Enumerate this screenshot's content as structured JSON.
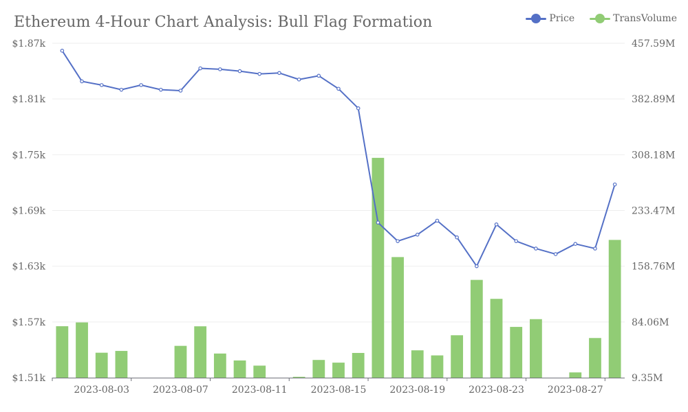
{
  "chart_data": {
    "type": "bar+line",
    "title": "Ethereum 4-Hour Chart Analysis: Bull Flag Formation",
    "x": [
      "2023-08-01",
      "2023-08-02",
      "2023-08-03",
      "2023-08-04",
      "2023-08-05",
      "2023-08-06",
      "2023-08-07",
      "2023-08-08",
      "2023-08-09",
      "2023-08-10",
      "2023-08-11",
      "2023-08-12",
      "2023-08-13",
      "2023-08-14",
      "2023-08-15",
      "2023-08-16",
      "2023-08-17",
      "2023-08-18",
      "2023-08-19",
      "2023-08-20",
      "2023-08-21",
      "2023-08-22",
      "2023-08-23",
      "2023-08-24",
      "2023-08-25",
      "2023-08-26",
      "2023-08-27",
      "2023-08-28",
      "2023-08-29"
    ],
    "x_tick_labels": [
      "2023-08-03",
      "2023-08-07",
      "2023-08-11",
      "2023-08-15",
      "2023-08-19",
      "2023-08-23",
      "2023-08-27"
    ],
    "series": [
      {
        "name": "Price",
        "type": "line",
        "axis": "left",
        "color": "#5470c6",
        "values": [
          1862,
          1829,
          1825,
          1820,
          1825,
          1820,
          1819,
          1843,
          1842,
          1840,
          1837,
          1838,
          1831,
          1835,
          1821,
          1800,
          1677,
          1657,
          1664,
          1679,
          1661,
          1630,
          1675,
          1657,
          1649,
          1643,
          1654,
          1649,
          1718
        ]
      },
      {
        "name": "TransVolume",
        "type": "bar",
        "axis": "right",
        "color": "#91cc75",
        "values": [
          78.3,
          83.4,
          42.8,
          45.2,
          5.0,
          8.8,
          52.0,
          78.2,
          41.7,
          32.4,
          25.5,
          null,
          10.5,
          33.1,
          29.5,
          42.5,
          304.0,
          171.0,
          46.0,
          39.2,
          66.2,
          140.4,
          115.0,
          77.4,
          87.8,
          5.9,
          16.4,
          62.5,
          194.0
        ]
      }
    ],
    "yaxis_left": {
      "ticks": [
        "$1.51k",
        "$1.57k",
        "$1.63k",
        "$1.69k",
        "$1.75k",
        "$1.81k",
        "$1.87k"
      ],
      "min": 1510,
      "max": 1870
    },
    "yaxis_right": {
      "ticks": [
        "9.35M",
        "84.06M",
        "158.76M",
        "233.47M",
        "308.18M",
        "382.89M",
        "457.59M"
      ],
      "min": 9.35,
      "max": 457.59
    },
    "grid": true,
    "legend_position": "top-right"
  }
}
